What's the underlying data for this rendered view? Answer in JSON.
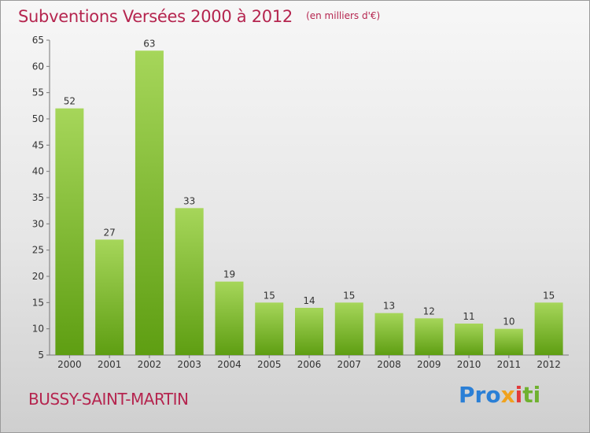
{
  "header": {
    "title": "Subventions Versées 2000 à 2012",
    "subtitle": "(en milliers d'€)"
  },
  "footer": {
    "town": "BUSSY-SAINT-MARTIN",
    "logo": "Proxiti"
  },
  "colors": {
    "title": "#b5254f",
    "bar_light": "#a6d65a",
    "bar_dark": "#5e9e12"
  },
  "chart_data": {
    "type": "bar",
    "title": "Subventions Versées 2000 à 2012",
    "subtitle": "(en milliers d'€)",
    "xlabel": "",
    "ylabel": "",
    "categories": [
      "2000",
      "2001",
      "2002",
      "2003",
      "2004",
      "2005",
      "2006",
      "2007",
      "2008",
      "2009",
      "2010",
      "2011",
      "2012"
    ],
    "values": [
      52,
      27,
      63,
      33,
      19,
      15,
      14,
      15,
      13,
      12,
      11,
      10,
      15
    ],
    "ylim": [
      5,
      65
    ],
    "yticks": [
      5,
      10,
      15,
      20,
      25,
      30,
      35,
      40,
      45,
      50,
      55,
      60,
      65
    ],
    "grid": false,
    "legend": "none"
  }
}
